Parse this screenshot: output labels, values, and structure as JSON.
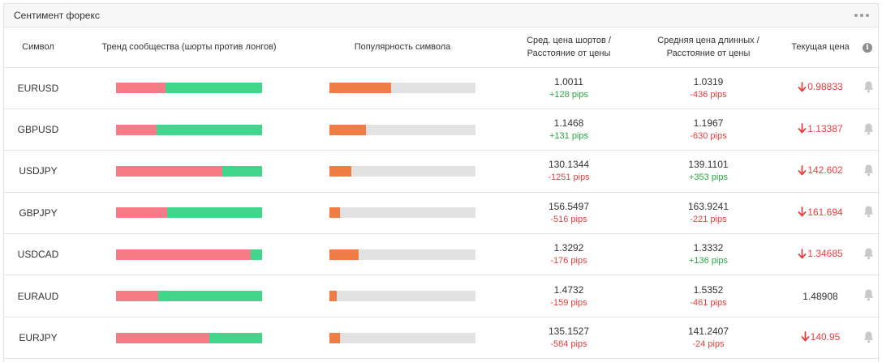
{
  "widget": {
    "title": "Сентимент форекс"
  },
  "columns": {
    "symbol": "Символ",
    "trend": "Тренд сообщества (шорты против лонгов)",
    "popularity": "Популярность символа",
    "short_line1": "Сред. цена шортов /",
    "short_line2": "Расстояние от цены",
    "long_line1": "Средняя цена длинных /",
    "long_line2": "Расстояние от цены",
    "current": "Текущая цена",
    "info": "i"
  },
  "colors": {
    "short": "#f77b86",
    "long": "#41d68c",
    "popularity": "#f07c46",
    "negative": "#e83e3e",
    "positive": "#28a745"
  },
  "rows": [
    {
      "symbol": "EURUSD",
      "short_pct": 34,
      "popularity_pct": 42,
      "short_price": "1.0011",
      "short_pips": "+128 pips",
      "short_dir": "pos",
      "long_price": "1.0319",
      "long_pips": "-436 pips",
      "long_dir": "neg",
      "current": "0.98833",
      "current_dir": "down"
    },
    {
      "symbol": "GBPUSD",
      "short_pct": 28,
      "popularity_pct": 25,
      "short_price": "1.1468",
      "short_pips": "+131 pips",
      "short_dir": "pos",
      "long_price": "1.1967",
      "long_pips": "-630 pips",
      "long_dir": "neg",
      "current": "1.13387",
      "current_dir": "down"
    },
    {
      "symbol": "USDJPY",
      "short_pct": 73,
      "popularity_pct": 15,
      "short_price": "130.1344",
      "short_pips": "-1251 pips",
      "short_dir": "neg",
      "long_price": "139.1101",
      "long_pips": "+353 pips",
      "long_dir": "pos",
      "current": "142.602",
      "current_dir": "down"
    },
    {
      "symbol": "GBPJPY",
      "short_pct": 35,
      "popularity_pct": 7,
      "short_price": "156.5497",
      "short_pips": "-516 pips",
      "short_dir": "neg",
      "long_price": "163.9241",
      "long_pips": "-221 pips",
      "long_dir": "neg",
      "current": "161.694",
      "current_dir": "down"
    },
    {
      "symbol": "USDCAD",
      "short_pct": 92,
      "popularity_pct": 20,
      "short_price": "1.3292",
      "short_pips": "-176 pips",
      "short_dir": "neg",
      "long_price": "1.3332",
      "long_pips": "+136 pips",
      "long_dir": "pos",
      "current": "1.34685",
      "current_dir": "down"
    },
    {
      "symbol": "EURAUD",
      "short_pct": 29,
      "popularity_pct": 5,
      "short_price": "1.4732",
      "short_pips": "-159 pips",
      "short_dir": "neg",
      "long_price": "1.5352",
      "long_pips": "-461 pips",
      "long_dir": "neg",
      "current": "1.48908",
      "current_dir": "neutral"
    },
    {
      "symbol": "EURJPY",
      "short_pct": 64,
      "popularity_pct": 7,
      "short_price": "135.1527",
      "short_pips": "-584 pips",
      "short_dir": "neg",
      "long_price": "141.2407",
      "long_pips": "-24 pips",
      "long_dir": "neg",
      "current": "140.95",
      "current_dir": "down"
    }
  ]
}
